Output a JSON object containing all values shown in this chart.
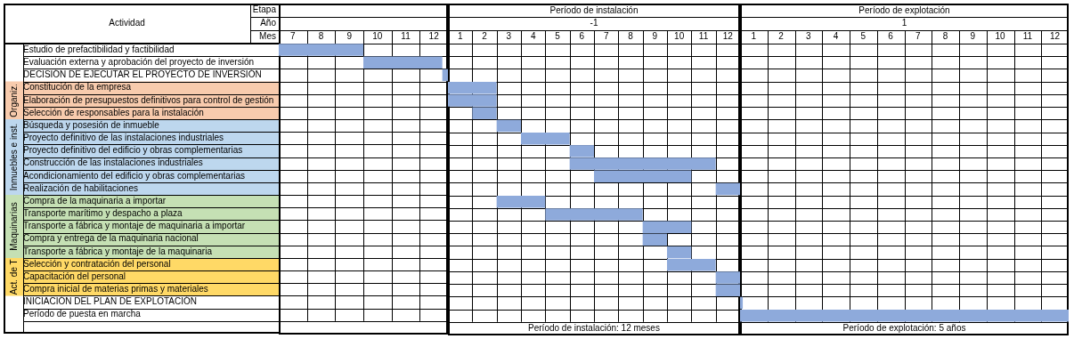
{
  "chart_data": [
    {
      "type": "bar",
      "orientation": "horizontal",
      "color": "#8eaadb",
      "categories": [
        "Estudio de prefactibilidad y factibilidad",
        "Evaluación externa y aprobación del proyecto de inversión",
        "DECISIÓN DE EJECUTAR EL PROYECTO DE INVERSIÓN",
        "Constitución de la empresa",
        "Elaboración de presupuestos definitivos para control de gestión",
        "Selección de responsables para la instalación",
        "Búsqueda y posesión de inmueble",
        "Proyecto definitivo de las instalaciones industriales",
        "Proyecto definitivo del edificio y obras complementarias",
        "Construcción de las instalaciones industriales",
        "Acondicionamiento del edificio y obras complementarias",
        "Realización de habilitaciones",
        "Compra de la maquinaria a importar",
        "Transporte marítimo y despacho a plaza",
        "Transporte a fábrica y montaje de maquinaria a importar",
        "Compra y entrega de la maquinaria nacional",
        "Transporte a fábrica y montaje de la maquinaria",
        "Selección y contratación del personal",
        "Capacitación del personal",
        "Compra inicial de materias primas y materiales",
        "INICIACIÓN DEL PLAN DE EXPLOTACIÓN",
        "Período de puesta en marcha",
        null
      ],
      "base": [
        6.5,
        9.5,
        12.3,
        null,
        null,
        null,
        null,
        null,
        null,
        null,
        null,
        null,
        null,
        null,
        null,
        null,
        null,
        null,
        null,
        null,
        null,
        null,
        null
      ],
      "values": [
        3,
        2.8,
        0.2,
        null,
        null,
        null,
        null,
        null,
        null,
        null,
        null,
        null,
        null,
        null,
        null,
        null,
        null,
        null,
        null,
        null,
        null,
        null,
        null
      ],
      "xlim": [
        6.5,
        12.5
      ],
      "xticks": [
        7,
        8,
        9,
        10,
        11,
        12
      ],
      "grid": true,
      "annotations": [
        "Actividad",
        "Etapa",
        "Año",
        "Mes",
        "Organiz.",
        "Inmuebles e inst.",
        "Maquinarias",
        "Act. de T"
      ]
    },
    {
      "type": "bar",
      "orientation": "horizontal",
      "color": "#8eaadb",
      "title": "Período de instalación",
      "subtitle": "-1",
      "tick_labels": "x",
      "categories": [
        null,
        null,
        null,
        null,
        null,
        null,
        null,
        null,
        null,
        null,
        null,
        null,
        null,
        null,
        null,
        null,
        null,
        null,
        null,
        null,
        null,
        null,
        null
      ],
      "base": [
        null,
        null,
        null,
        0.5,
        0.5,
        1.5,
        2.5,
        3.5,
        5.5,
        5.5,
        6.5,
        11.5,
        2.5,
        4.5,
        8.5,
        8.5,
        9.5,
        9.5,
        11.5,
        11.5,
        null,
        null,
        null
      ],
      "values": [
        null,
        null,
        null,
        2,
        2,
        1,
        1,
        2,
        1,
        6,
        4,
        1,
        2,
        4,
        2,
        1,
        1,
        2,
        1,
        1,
        null,
        null,
        null
      ],
      "xlim": [
        0.5,
        12.5
      ],
      "xticks": [
        1,
        2,
        3,
        4,
        5,
        6,
        7,
        8,
        9,
        10,
        11,
        12
      ],
      "grid": true,
      "annotations": [
        "Período de instalación: 12 meses"
      ]
    },
    {
      "type": "bar",
      "orientation": "horizontal",
      "color": "#8eaadb",
      "title": "Período de explotación",
      "subtitle": "1",
      "tick_labels": "x",
      "categories": [
        null,
        null,
        null,
        null,
        null,
        null,
        null,
        null,
        null,
        null,
        null,
        null,
        null,
        null,
        null,
        null,
        null,
        null,
        null,
        null,
        null,
        null,
        null
      ],
      "base": [
        null,
        null,
        null,
        null,
        null,
        null,
        null,
        null,
        null,
        null,
        null,
        null,
        null,
        null,
        null,
        null,
        null,
        null,
        null,
        null,
        0.5,
        0.5,
        null
      ],
      "values": [
        null,
        null,
        null,
        null,
        null,
        null,
        null,
        null,
        null,
        null,
        null,
        null,
        null,
        null,
        null,
        null,
        null,
        null,
        null,
        null,
        0.1,
        12,
        null
      ],
      "xlim": [
        0.5,
        12.5
      ],
      "xticks": [
        1,
        2,
        3,
        4,
        5,
        6,
        7,
        8,
        9,
        10,
        11,
        12
      ],
      "grid": true,
      "annotations": [
        "Período de explotación: 5 años"
      ]
    }
  ]
}
